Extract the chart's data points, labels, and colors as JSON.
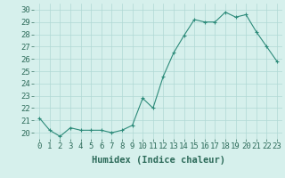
{
  "x": [
    0,
    1,
    2,
    3,
    4,
    5,
    6,
    7,
    8,
    9,
    10,
    11,
    12,
    13,
    14,
    15,
    16,
    17,
    18,
    19,
    20,
    21,
    22,
    23
  ],
  "y": [
    21.2,
    20.2,
    19.7,
    20.4,
    20.2,
    20.2,
    20.2,
    20.0,
    20.2,
    20.6,
    22.8,
    22.0,
    24.6,
    26.5,
    27.9,
    29.2,
    29.0,
    29.0,
    29.8,
    29.4,
    29.6,
    28.2,
    27.0,
    25.8
  ],
  "line_color": "#2d8b7a",
  "marker": "+",
  "marker_color": "#2d8b7a",
  "bg_color": "#d6f0ec",
  "grid_color": "#b0d8d4",
  "tick_color": "#2d6b5a",
  "xlabel": "Humidex (Indice chaleur)",
  "xlim": [
    -0.5,
    23.5
  ],
  "ylim": [
    19.5,
    30.5
  ],
  "yticks": [
    20,
    21,
    22,
    23,
    24,
    25,
    26,
    27,
    28,
    29,
    30
  ],
  "xticks": [
    0,
    1,
    2,
    3,
    4,
    5,
    6,
    7,
    8,
    9,
    10,
    11,
    12,
    13,
    14,
    15,
    16,
    17,
    18,
    19,
    20,
    21,
    22,
    23
  ],
  "font_size": 6.5,
  "xlabel_fontsize": 7.5
}
